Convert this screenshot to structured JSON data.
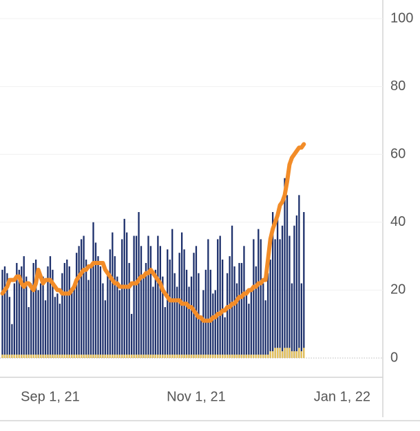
{
  "chart_data": {
    "type": "bar",
    "x": [
      "2021-08-12",
      "2021-08-13",
      "2021-08-14",
      "2021-08-15",
      "2021-08-16",
      "2021-08-17",
      "2021-08-18",
      "2021-08-19",
      "2021-08-20",
      "2021-08-21",
      "2021-08-22",
      "2021-08-23",
      "2021-08-24",
      "2021-08-25",
      "2021-08-26",
      "2021-08-27",
      "2021-08-28",
      "2021-08-29",
      "2021-08-30",
      "2021-08-31",
      "2021-09-01",
      "2021-09-02",
      "2021-09-03",
      "2021-09-04",
      "2021-09-05",
      "2021-09-06",
      "2021-09-07",
      "2021-09-08",
      "2021-09-09",
      "2021-09-10",
      "2021-09-11",
      "2021-09-12",
      "2021-09-13",
      "2021-09-14",
      "2021-09-15",
      "2021-09-16",
      "2021-09-17",
      "2021-09-18",
      "2021-09-19",
      "2021-09-20",
      "2021-09-21",
      "2021-09-22",
      "2021-09-23",
      "2021-09-24",
      "2021-09-25",
      "2021-09-26",
      "2021-09-27",
      "2021-09-28",
      "2021-09-29",
      "2021-09-30",
      "2021-10-01",
      "2021-10-02",
      "2021-10-03",
      "2021-10-04",
      "2021-10-05",
      "2021-10-06",
      "2021-10-07",
      "2021-10-08",
      "2021-10-09",
      "2021-10-10",
      "2021-10-11",
      "2021-10-12",
      "2021-10-13",
      "2021-10-14",
      "2021-10-15",
      "2021-10-16",
      "2021-10-17",
      "2021-10-18",
      "2021-10-19",
      "2021-10-20",
      "2021-10-21",
      "2021-10-22",
      "2021-10-23",
      "2021-10-24",
      "2021-10-25",
      "2021-10-26",
      "2021-10-27",
      "2021-10-28",
      "2021-10-29",
      "2021-10-30",
      "2021-10-31",
      "2021-11-01",
      "2021-11-02",
      "2021-11-03",
      "2021-11-04",
      "2021-11-05",
      "2021-11-06",
      "2021-11-07",
      "2021-11-08",
      "2021-11-09",
      "2021-11-10",
      "2021-11-11",
      "2021-11-12",
      "2021-11-13",
      "2021-11-14",
      "2021-11-15",
      "2021-11-16",
      "2021-11-17",
      "2021-11-18",
      "2021-11-19",
      "2021-11-20",
      "2021-11-21",
      "2021-11-22",
      "2021-11-23",
      "2021-11-24",
      "2021-11-25",
      "2021-11-26",
      "2021-11-27",
      "2021-11-28",
      "2021-11-29",
      "2021-11-30",
      "2021-12-01",
      "2021-12-02",
      "2021-12-03",
      "2021-12-04",
      "2021-12-05",
      "2021-12-06",
      "2021-12-07",
      "2021-12-08",
      "2021-12-09",
      "2021-12-10",
      "2021-12-11",
      "2021-12-12",
      "2021-12-13",
      "2021-12-14",
      "2021-12-15",
      "2021-12-16"
    ],
    "series": [
      {
        "type": "bar",
        "color": "#1c2f6b",
        "values": [
          26,
          27,
          25,
          18,
          10,
          22,
          28,
          26,
          27,
          30,
          24,
          15,
          22,
          28,
          29,
          20,
          22,
          24,
          17,
          27,
          30,
          26,
          18,
          19,
          16,
          25,
          28,
          29,
          27,
          20,
          21,
          31,
          33,
          35,
          36,
          29,
          23,
          27,
          40,
          34,
          30,
          27,
          22,
          17,
          25,
          32,
          37,
          30,
          24,
          20,
          35,
          41,
          37,
          28,
          13,
          36,
          36,
          43,
          33,
          24,
          28,
          36,
          33,
          21,
          26,
          36,
          33,
          24,
          15,
          32,
          29,
          38,
          25,
          21,
          31,
          37,
          32,
          26,
          21,
          24,
          31,
          33,
          25,
          12,
          20,
          26,
          35,
          26,
          19,
          20,
          35,
          36,
          29,
          12,
          25,
          30,
          39,
          27,
          22,
          28,
          28,
          33,
          20,
          16,
          20,
          35,
          27,
          38,
          35,
          22,
          17,
          25,
          29,
          43,
          35,
          41,
          35,
          39,
          53,
          48,
          36,
          22,
          39,
          42,
          48,
          22,
          43
        ]
      },
      {
        "type": "bar",
        "color": "#e8c35a",
        "values": [
          1,
          1,
          1,
          1,
          1,
          1,
          1,
          1,
          1,
          1,
          1,
          1,
          1,
          1,
          1,
          1,
          1,
          1,
          1,
          1,
          1,
          1,
          1,
          1,
          1,
          1,
          1,
          1,
          1,
          1,
          1,
          1,
          1,
          1,
          1,
          1,
          1,
          1,
          1,
          1,
          1,
          1,
          1,
          1,
          1,
          1,
          1,
          1,
          1,
          1,
          1,
          1,
          1,
          1,
          1,
          1,
          1,
          1,
          1,
          1,
          1,
          1,
          1,
          1,
          1,
          1,
          1,
          1,
          1,
          1,
          1,
          1,
          1,
          1,
          1,
          1,
          1,
          1,
          1,
          1,
          1,
          1,
          1,
          1,
          1,
          1,
          1,
          1,
          1,
          1,
          1,
          1,
          1,
          1,
          1,
          1,
          1,
          1,
          1,
          1,
          1,
          1,
          1,
          1,
          1,
          1,
          1,
          1,
          1,
          1,
          1,
          1,
          2,
          2,
          3,
          3,
          3,
          2,
          3,
          3,
          3,
          2,
          2,
          2,
          3,
          2,
          3
        ]
      },
      {
        "type": "line",
        "color": "#f28c28",
        "values": [
          19,
          20,
          21,
          23,
          23,
          23,
          24,
          24,
          22,
          21,
          22,
          22,
          21,
          20,
          22,
          26,
          24,
          22,
          23,
          23,
          23,
          22,
          21,
          20,
          20,
          19,
          19,
          19,
          19,
          20,
          21,
          23,
          24,
          25,
          26,
          26,
          27,
          27,
          28,
          28,
          28,
          28,
          28,
          26,
          25,
          24,
          23,
          22,
          22,
          21,
          21,
          21,
          21,
          21,
          22,
          22,
          22,
          23,
          24,
          24,
          25,
          25,
          26,
          25,
          24,
          23,
          22,
          20,
          19,
          18,
          17,
          17,
          17,
          17,
          17,
          16,
          16,
          16,
          15,
          15,
          14,
          13,
          12,
          12,
          11,
          11,
          11,
          11,
          12,
          12,
          13,
          13,
          14,
          14,
          15,
          15,
          16,
          16,
          17,
          18,
          18,
          19,
          19,
          20,
          20,
          21,
          21,
          22,
          22,
          23,
          23,
          29,
          35,
          38,
          40,
          42,
          45,
          46,
          48,
          52,
          57,
          59,
          60,
          61,
          62,
          62,
          63
        ]
      }
    ],
    "xlim": [
      "2021-08-11",
      "2022-01-18"
    ],
    "xticks": [
      {
        "value": "2021-09-01",
        "label": "Sep 1, 21"
      },
      {
        "value": "2021-11-01",
        "label": "Nov 1, 21"
      },
      {
        "value": "2022-01-01",
        "label": "Jan 1, 22"
      }
    ],
    "ylim": [
      0,
      100
    ],
    "yticks": [
      0,
      20,
      40,
      60,
      80,
      100
    ],
    "grid": true
  }
}
